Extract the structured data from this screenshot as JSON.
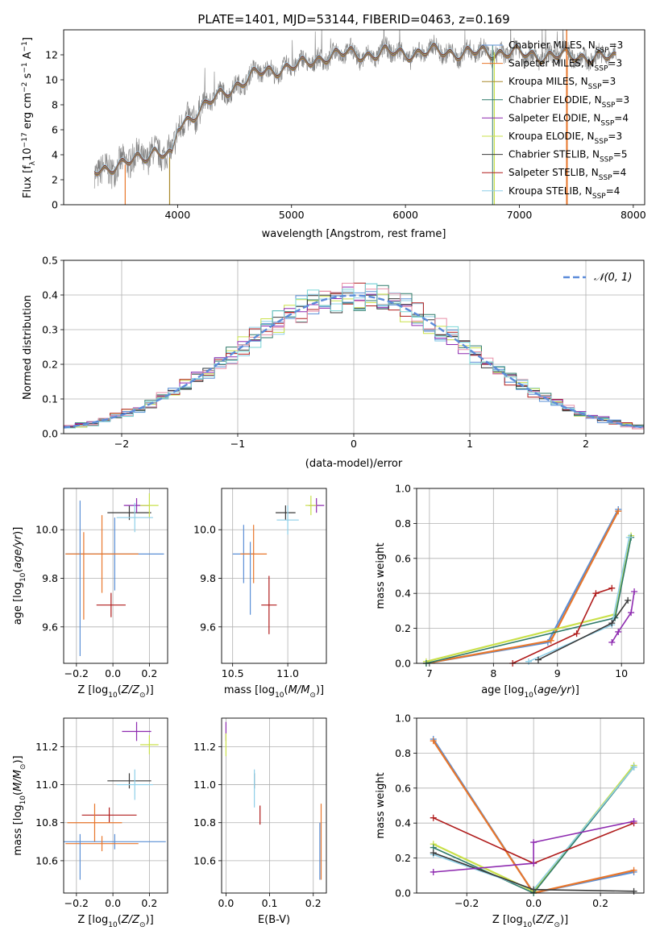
{
  "figure_title": "PLATE=1401, MJD=53144, FIBERID=0463, z=0.169",
  "colors": {
    "Chabrier MILES": "#5a8fd6",
    "Salpeter MILES": "#e8762b",
    "Kroupa MILES": "#a8882a",
    "Chabrier ELODIE": "#2f7a6a",
    "Salpeter ELODIE": "#8e2bb0",
    "Kroupa ELODIE": "#c9e04a",
    "Chabrier STELIB": "#3a3a3a",
    "Salpeter STELIB": "#b01c1c",
    "Kroupa STELIB": "#8ecfe8",
    "data": "#808080",
    "gaussian": "#5b8bd9",
    "sf_cyan": "#79d6d6",
    "sf_pink": "#e88fa8"
  },
  "chart_data": [
    {
      "id": "spectrum",
      "type": "line",
      "title": "PLATE=1401, MJD=53144, FIBERID=0463, z=0.169",
      "xlabel": "wavelength [Angstrom, rest frame]",
      "ylabel": "Flux [f",
      "ylabel_parts": [
        "Flux [f",
        "λ",
        "10",
        "−17",
        " erg cm",
        "−2",
        " s",
        "−1",
        " A",
        "−1",
        "]"
      ],
      "xlim": [
        3000,
        8100
      ],
      "ylim": [
        0,
        14
      ],
      "xticks": [
        4000,
        5000,
        6000,
        7000,
        8000
      ],
      "yticks": [
        0,
        2,
        4,
        6,
        8,
        10,
        12
      ],
      "legend_position": "right",
      "legend": [
        {
          "name": "Chabrier MILES",
          "nssp": "3"
        },
        {
          "name": "Salpeter MILES",
          "nssp": "3"
        },
        {
          "name": "Kroupa MILES",
          "nssp": "3"
        },
        {
          "name": "Chabrier ELODIE",
          "nssp": "3"
        },
        {
          "name": "Salpeter ELODIE",
          "nssp": "4"
        },
        {
          "name": "Kroupa ELODIE",
          "nssp": "3"
        },
        {
          "name": "Chabrier STELIB",
          "nssp": "5"
        },
        {
          "name": "Salpeter STELIB",
          "nssp": "4"
        },
        {
          "name": "Kroupa STELIB",
          "nssp": "4"
        }
      ],
      "nssp_label": "N",
      "nssp_sub": "SSP",
      "continuum": {
        "x": [
          3270,
          3500,
          3650,
          3800,
          3950,
          4000,
          4150,
          4300,
          4500,
          4700,
          4900,
          5100,
          5300,
          5500,
          5700,
          5900,
          6100,
          6300,
          6500,
          6700,
          6900,
          7100,
          7300,
          7500,
          7700,
          7850
        ],
        "y": [
          2.9,
          3.0,
          3.8,
          4.3,
          3.7,
          6.2,
          7.3,
          8.3,
          9.5,
          10.5,
          10.9,
          11.2,
          11.9,
          12.1,
          12.0,
          12.2,
          12.1,
          12.3,
          12.1,
          12.2,
          12.2,
          12.0,
          11.9,
          11.9,
          11.8,
          11.7
        ]
      }
    },
    {
      "id": "residuals",
      "type": "histogram",
      "xlabel": "(data-model)/error",
      "ylabel": "Normed distribution",
      "xlim": [
        -2.5,
        2.5
      ],
      "ylim": [
        0,
        0.5
      ],
      "xticks": [
        -2,
        -1,
        0,
        1,
        2
      ],
      "yticks": [
        0.0,
        0.1,
        0.2,
        0.3,
        0.4,
        0.5
      ],
      "legend_label": "𝒩(0, 1)",
      "legend_position": "top-right",
      "bin_width": 0.1
    },
    {
      "id": "age_vs_Z",
      "type": "scatter",
      "xlabel": "Z [log",
      "ylabel": "age  [log",
      "xlim": [
        -0.27,
        0.3
      ],
      "ylim": [
        9.45,
        10.17
      ],
      "xticks": [
        -0.2,
        0.0,
        0.2
      ],
      "yticks": [
        9.6,
        9.8,
        10.0
      ],
      "points": [
        {
          "series": "Chabrier STELIB",
          "x": 0.09,
          "xerr": 0.12,
          "y": 10.07,
          "yerr": 0.03
        },
        {
          "series": "Salpeter ELODIE",
          "x": 0.13,
          "xerr": 0.07,
          "y": 10.1,
          "yerr": 0.03
        },
        {
          "series": "Kroupa ELODIE",
          "x": 0.2,
          "xerr": 0.05,
          "y": 10.1,
          "yerr": 0.05
        },
        {
          "series": "Kroupa STELIB",
          "x": 0.12,
          "xerr": 0.1,
          "y": 10.05,
          "yerr": 0.06
        },
        {
          "series": "Chabrier MILES",
          "x": 0.01,
          "xerr": 0.27,
          "y": 9.9,
          "yerr": 0.15
        },
        {
          "series": "Salpeter MILES",
          "x": -0.06,
          "xerr": 0.2,
          "y": 9.9,
          "yerr": 0.16
        },
        {
          "series": "Salpeter STELIB",
          "x": -0.01,
          "xerr": 0.08,
          "y": 9.69,
          "yerr": 0.05
        },
        {
          "series": "Chabrier MILES",
          "x": -0.18,
          "xerr": 0.0,
          "y": 9.8,
          "yerr": 0.32
        },
        {
          "series": "Salpeter MILES",
          "x": -0.16,
          "xerr": 0.0,
          "y": 9.81,
          "yerr": 0.18
        }
      ]
    },
    {
      "id": "age_vs_mass",
      "type": "scatter",
      "xlabel": "mass [log",
      "ylabel": "",
      "xlim": [
        10.4,
        11.35
      ],
      "ylim": [
        9.45,
        10.17
      ],
      "xticks": [
        10.5,
        11.0
      ],
      "yticks": [
        9.6,
        9.8,
        10.0
      ],
      "points": [
        {
          "series": "Chabrier STELIB",
          "x": 10.98,
          "xerr": 0.09,
          "y": 10.07,
          "yerr": 0.03
        },
        {
          "series": "Salpeter ELODIE",
          "x": 11.26,
          "xerr": 0.07,
          "y": 10.1,
          "yerr": 0.03
        },
        {
          "series": "Kroupa ELODIE",
          "x": 11.21,
          "xerr": 0.05,
          "y": 10.1,
          "yerr": 0.04
        },
        {
          "series": "Kroupa STELIB",
          "x": 11.0,
          "xerr": 0.1,
          "y": 10.04,
          "yerr": 0.06
        },
        {
          "series": "Chabrier MILES",
          "x": 10.6,
          "xerr": 0.1,
          "y": 9.9,
          "yerr": 0.12
        },
        {
          "series": "Salpeter MILES",
          "x": 10.69,
          "xerr": 0.12,
          "y": 9.9,
          "yerr": 0.12
        },
        {
          "series": "Salpeter STELIB",
          "x": 10.83,
          "xerr": 0.07,
          "y": 9.69,
          "yerr": 0.12
        },
        {
          "series": "Chabrier MILES",
          "x": 10.66,
          "xerr": 0.0,
          "y": 9.8,
          "yerr": 0.15
        }
      ]
    },
    {
      "id": "weight_vs_age",
      "type": "line",
      "xlabel": "age  [log",
      "ylabel": "mass weight",
      "xlim": [
        6.8,
        10.35
      ],
      "ylim": [
        0,
        1
      ],
      "xticks": [
        7,
        8,
        9,
        10
      ],
      "yticks": [
        0.0,
        0.2,
        0.4,
        0.6,
        0.8,
        1.0
      ],
      "series": [
        {
          "name": "Chabrier MILES",
          "x": [
            6.95,
            8.85,
            9.95
          ],
          "y": [
            0.0,
            0.12,
            0.88
          ]
        },
        {
          "name": "Salpeter MILES",
          "x": [
            6.95,
            8.9,
            9.95
          ],
          "y": [
            0.0,
            0.13,
            0.87
          ]
        },
        {
          "name": "Kroupa ELODIE",
          "x": [
            6.95,
            9.9,
            10.15
          ],
          "y": [
            0.01,
            0.28,
            0.73
          ]
        },
        {
          "name": "Chabrier ELODIE",
          "x": [
            6.95,
            9.9,
            10.15
          ],
          "y": [
            0.0,
            0.26,
            0.72
          ]
        },
        {
          "name": "Kroupa STELIB",
          "x": [
            8.55,
            9.85,
            10.12
          ],
          "y": [
            0.01,
            0.22,
            0.72
          ]
        },
        {
          "name": "Chabrier STELIB",
          "x": [
            8.7,
            9.85,
            10.1
          ],
          "y": [
            0.02,
            0.23,
            0.36
          ]
        },
        {
          "name": "Salpeter STELIB",
          "x": [
            8.3,
            9.3,
            9.6,
            9.85
          ],
          "y": [
            0.0,
            0.17,
            0.4,
            0.43
          ]
        },
        {
          "name": "Salpeter ELODIE",
          "x": [
            9.85,
            9.95,
            10.15,
            10.2
          ],
          "y": [
            0.12,
            0.18,
            0.29,
            0.41
          ]
        }
      ]
    },
    {
      "id": "mass_vs_Z",
      "type": "scatter",
      "xlabel": "Z [log",
      "ylabel": "mass [log",
      "xlim": [
        -0.27,
        0.3
      ],
      "ylim": [
        10.43,
        11.35
      ],
      "xticks": [
        -0.2,
        0.0,
        0.2
      ],
      "yticks": [
        10.6,
        10.8,
        11.0,
        11.2
      ],
      "points": [
        {
          "series": "Salpeter ELODIE",
          "x": 0.13,
          "xerr": 0.08,
          "y": 11.28,
          "yerr": 0.05
        },
        {
          "series": "Kroupa ELODIE",
          "x": 0.2,
          "xerr": 0.05,
          "y": 11.21,
          "yerr": 0.05
        },
        {
          "series": "Chabrier STELIB",
          "x": 0.09,
          "xerr": 0.12,
          "y": 11.02,
          "yerr": 0.04
        },
        {
          "series": "Kroupa STELIB",
          "x": 0.12,
          "xerr": 0.1,
          "y": 11.0,
          "yerr": 0.08
        },
        {
          "series": "Salpeter STELIB",
          "x": -0.02,
          "xerr": 0.15,
          "y": 10.84,
          "yerr": 0.04
        },
        {
          "series": "Salpeter MILES",
          "x": -0.1,
          "xerr": 0.15,
          "y": 10.8,
          "yerr": 0.1
        },
        {
          "series": "Chabrier MILES",
          "x": 0.01,
          "xerr": 0.28,
          "y": 10.7,
          "yerr": 0.04
        },
        {
          "series": "Salpeter MILES",
          "x": -0.06,
          "xerr": 0.2,
          "y": 10.69,
          "yerr": 0.04
        },
        {
          "series": "Chabrier MILES",
          "x": -0.18,
          "xerr": 0.0,
          "y": 10.62,
          "yerr": 0.12
        }
      ]
    },
    {
      "id": "mass_vs_ebv",
      "type": "scatter",
      "xlabel": "E(B-V)",
      "ylabel": "",
      "xlim": [
        -0.01,
        0.23
      ],
      "ylim": [
        10.43,
        11.35
      ],
      "xticks": [
        0.0,
        0.1,
        0.2
      ],
      "yticks": [
        10.6,
        10.8,
        11.0,
        11.2
      ],
      "points": [
        {
          "series": "Salpeter ELODIE",
          "x": 0.0,
          "y": 11.28,
          "yerr": 0.05
        },
        {
          "series": "Kroupa ELODIE",
          "x": 0.0,
          "y": 11.21,
          "yerr": 0.06
        },
        {
          "series": "Chabrier STELIB",
          "x": 0.065,
          "y": 11.02,
          "yerr": 0.04
        },
        {
          "series": "Kroupa STELIB",
          "x": 0.065,
          "y": 10.98,
          "yerr": 0.1
        },
        {
          "series": "Salpeter STELIB",
          "x": 0.078,
          "y": 10.84,
          "yerr": 0.05
        },
        {
          "series": "Salpeter MILES",
          "x": 0.218,
          "y": 10.7,
          "yerr": 0.2
        },
        {
          "series": "Chabrier MILES",
          "x": 0.215,
          "y": 10.65,
          "yerr": 0.15
        }
      ]
    },
    {
      "id": "weight_vs_Z",
      "type": "line",
      "xlabel": "Z [log",
      "ylabel": "mass weight",
      "xlim": [
        -0.35,
        0.33
      ],
      "ylim": [
        0,
        1
      ],
      "xticks": [
        -0.2,
        0.0,
        0.2
      ],
      "yticks": [
        0.0,
        0.2,
        0.4,
        0.6,
        0.8,
        1.0
      ],
      "series": [
        {
          "name": "Chabrier MILES",
          "x": [
            -0.3,
            0.0,
            0.3
          ],
          "y": [
            0.88,
            0.0,
            0.12
          ]
        },
        {
          "name": "Salpeter MILES",
          "x": [
            -0.3,
            0.0,
            0.3
          ],
          "y": [
            0.87,
            0.0,
            0.13
          ]
        },
        {
          "name": "Kroupa ELODIE",
          "x": [
            -0.3,
            0.0,
            0.3
          ],
          "y": [
            0.28,
            0.01,
            0.73
          ]
        },
        {
          "name": "Chabrier ELODIE",
          "x": [
            -0.3,
            0.0,
            0.3
          ],
          "y": [
            0.26,
            0.0,
            0.72
          ]
        },
        {
          "name": "Kroupa STELIB",
          "x": [
            -0.3,
            0.0,
            0.3
          ],
          "y": [
            0.22,
            0.02,
            0.72
          ]
        },
        {
          "name": "Chabrier STELIB",
          "x": [
            -0.3,
            0.0,
            0.3
          ],
          "y": [
            0.23,
            0.02,
            0.01
          ]
        },
        {
          "name": "Salpeter STELIB",
          "x": [
            -0.3,
            0.0,
            0.3
          ],
          "y": [
            0.43,
            0.17,
            0.4
          ]
        },
        {
          "name": "Salpeter ELODIE",
          "x": [
            -0.3,
            0.0,
            0.0,
            0.3
          ],
          "y": [
            0.12,
            0.17,
            0.29,
            0.41
          ]
        }
      ]
    }
  ]
}
